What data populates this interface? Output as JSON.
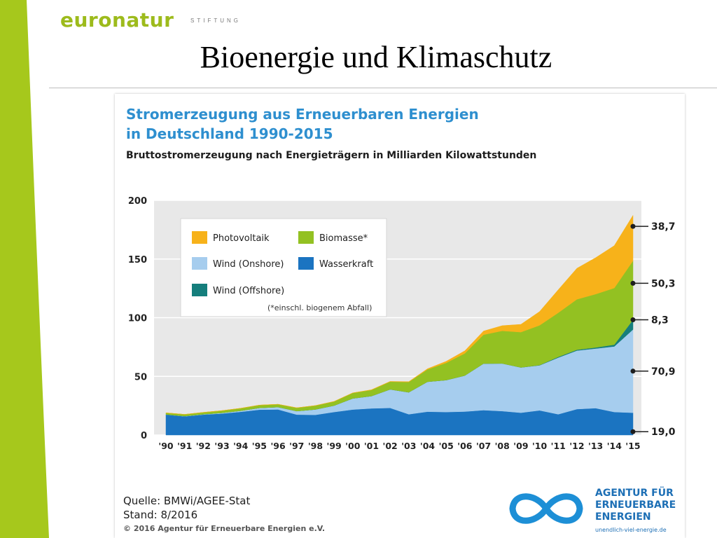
{
  "slide": {
    "brand_name": "euronatur",
    "brand_sub": "STIFTUNG",
    "title": "Bioenergie und Klimaschutz",
    "accent_color": "#a6c81c"
  },
  "chart_data": {
    "type": "area",
    "title_line1": "Stromerzeugung aus Erneuerbaren Energien",
    "title_line2": "in Deutschland 1990-2015",
    "subtitle": "Bruttostromerzeugung nach Energieträgern in Milliarden Kilowattstunden",
    "x_tick_labels": [
      "'90",
      "'91",
      "'92",
      "'93",
      "'94",
      "'95",
      "'96",
      "'97",
      "'98",
      "'99",
      "'00",
      "'01",
      "'02",
      "'03",
      "'04",
      "'05",
      "'06",
      "'07",
      "'08",
      "'09",
      "'10",
      "'11",
      "'12",
      "'13",
      "'14",
      "'15"
    ],
    "y_ticks": [
      0,
      50,
      100,
      150,
      200
    ],
    "ylim": [
      0,
      200
    ],
    "stacked": true,
    "series": [
      {
        "name": "Wasserkraft",
        "color": "#1b74c1",
        "values": [
          17.4,
          15.9,
          17.4,
          18.3,
          19.8,
          21.6,
          21.8,
          17.4,
          17.2,
          19.6,
          21.7,
          22.7,
          23.1,
          17.7,
          19.9,
          19.6,
          20.0,
          21.2,
          20.4,
          19.0,
          21.0,
          17.7,
          22.1,
          22.9,
          19.6,
          19.0
        ]
      },
      {
        "name": "Wind (Onshore)",
        "color": "#a6cdee",
        "values": [
          0.1,
          0.2,
          0.3,
          0.6,
          0.9,
          1.5,
          2.0,
          3.0,
          4.6,
          5.5,
          9.5,
          10.5,
          15.8,
          18.7,
          25.5,
          27.2,
          30.7,
          39.7,
          40.6,
          38.6,
          38.4,
          48.3,
          49.9,
          50.8,
          55.9,
          70.9
        ]
      },
      {
        "name": "Wind (Offshore)",
        "color": "#157e7c",
        "values": [
          0,
          0,
          0,
          0,
          0,
          0,
          0,
          0,
          0,
          0,
          0,
          0,
          0,
          0,
          0,
          0,
          0,
          0,
          0,
          0,
          0.2,
          0.6,
          0.7,
          0.9,
          1.5,
          8.3
        ]
      },
      {
        "name": "Biomasse*",
        "color": "#93c122",
        "values": [
          1.4,
          1.5,
          1.6,
          1.9,
          2.1,
          2.4,
          2.4,
          2.8,
          3.3,
          3.5,
          4.7,
          5.2,
          6.6,
          8.8,
          10.5,
          14.7,
          18.9,
          24.6,
          27.8,
          30.1,
          33.9,
          37.6,
          43.0,
          45.5,
          48.3,
          50.3
        ]
      },
      {
        "name": "Photovoltaik",
        "color": "#f7b21a",
        "values": [
          0,
          0,
          0,
          0,
          0,
          0,
          0,
          0,
          0,
          0,
          0,
          0.2,
          0.2,
          0.3,
          0.6,
          1.3,
          2.2,
          3.1,
          4.4,
          6.6,
          11.7,
          19.6,
          26.4,
          31.0,
          36.1,
          38.7
        ]
      }
    ],
    "end_labels": [
      {
        "series": "Photovoltaik",
        "text": "38,7"
      },
      {
        "series": "Biomasse*",
        "text": "50,3"
      },
      {
        "series": "Wind (Offshore)",
        "text": "8,3"
      },
      {
        "series": "Wind (Onshore)",
        "text": "70,9"
      },
      {
        "series": "Wasserkraft",
        "text": "19,0"
      }
    ],
    "legend": {
      "placement": "top-left",
      "entries": [
        {
          "label": "Photovoltaik",
          "color": "#f7b21a"
        },
        {
          "label": "Biomasse*",
          "color": "#93c122"
        },
        {
          "label": "Wind (Onshore)",
          "color": "#a6cdee"
        },
        {
          "label": "Wasserkraft",
          "color": "#1b74c1"
        },
        {
          "label": "Wind (Offshore)",
          "color": "#157e7c"
        }
      ],
      "note": "(*einschl. biogenem Abfall)"
    },
    "plot_background": "#e8e8e8",
    "grid": true
  },
  "footer": {
    "source": "Quelle: BMWi/AGEE-Stat",
    "stand": "Stand: 8/2016",
    "copyright": "© 2016 Agentur für Erneuerbare Energien e.V."
  },
  "logo": {
    "line1": "AGENTUR FÜR",
    "line2": "ERNEUERBARE",
    "line3": "ENERGIEN",
    "url": "unendlich-viel-energie.de",
    "color": "#1d6fb5"
  }
}
